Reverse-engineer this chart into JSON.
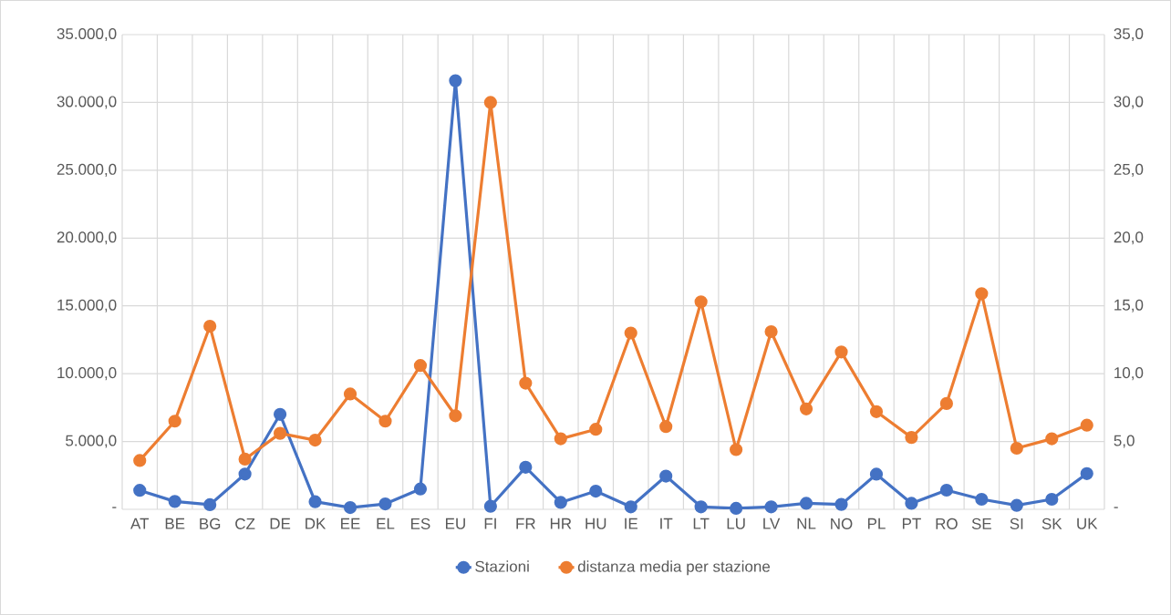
{
  "chart_data": {
    "type": "line",
    "categories": [
      "AT",
      "BE",
      "BG",
      "CZ",
      "DE",
      "DK",
      "EE",
      "EL",
      "ES",
      "EU",
      "FI",
      "FR",
      "HR",
      "HU",
      "IE",
      "IT",
      "LT",
      "LU",
      "LV",
      "NL",
      "NO",
      "PL",
      "PT",
      "RO",
      "SE",
      "SI",
      "SK",
      "UK"
    ],
    "series": [
      {
        "name": "Stazioni",
        "color": "#4472c4",
        "values": [
          1400,
          580,
          340,
          2600,
          7000,
          560,
          130,
          400,
          1500,
          31600,
          220,
          3100,
          510,
          1340,
          180,
          2450,
          180,
          70,
          180,
          440,
          360,
          2590,
          440,
          1410,
          740,
          290,
          740,
          2630
        ]
      },
      {
        "name": "distanza media per stazione",
        "color": "#ed7d31",
        "axis": "y2",
        "values": [
          3.6,
          6.5,
          13.5,
          3.7,
          5.6,
          5.1,
          8.5,
          6.5,
          10.6,
          6.9,
          30.0,
          9.3,
          5.2,
          5.9,
          13.0,
          6.1,
          15.3,
          4.4,
          13.1,
          7.4,
          11.6,
          7.2,
          5.3,
          7.8,
          15.9,
          4.5,
          5.2,
          6.2
        ]
      }
    ],
    "ylim": [
      0,
      35000
    ],
    "yticks": [
      {
        "value": 0,
        "label": "-"
      },
      {
        "value": 5000,
        "label": "5.000,0"
      },
      {
        "value": 10000,
        "label": "10.000,0"
      },
      {
        "value": 15000,
        "label": "15.000,0"
      },
      {
        "value": 20000,
        "label": "20.000,0"
      },
      {
        "value": 25000,
        "label": "25.000,0"
      },
      {
        "value": 30000,
        "label": "30.000,0"
      },
      {
        "value": 35000,
        "label": "35.000,0"
      }
    ],
    "y2lim": [
      0,
      35
    ],
    "y2ticks": [
      {
        "value": 0,
        "label": "-"
      },
      {
        "value": 5,
        "label": "5,0"
      },
      {
        "value": 10,
        "label": "10,0"
      },
      {
        "value": 15,
        "label": "15,0"
      },
      {
        "value": 20,
        "label": "20,0"
      },
      {
        "value": 25,
        "label": "25,0"
      },
      {
        "value": 30,
        "label": "30,0"
      },
      {
        "value": 35,
        "label": "35,0"
      }
    ],
    "grid": true,
    "legend": "bottom",
    "marker": "circle",
    "line_style": "solid"
  }
}
